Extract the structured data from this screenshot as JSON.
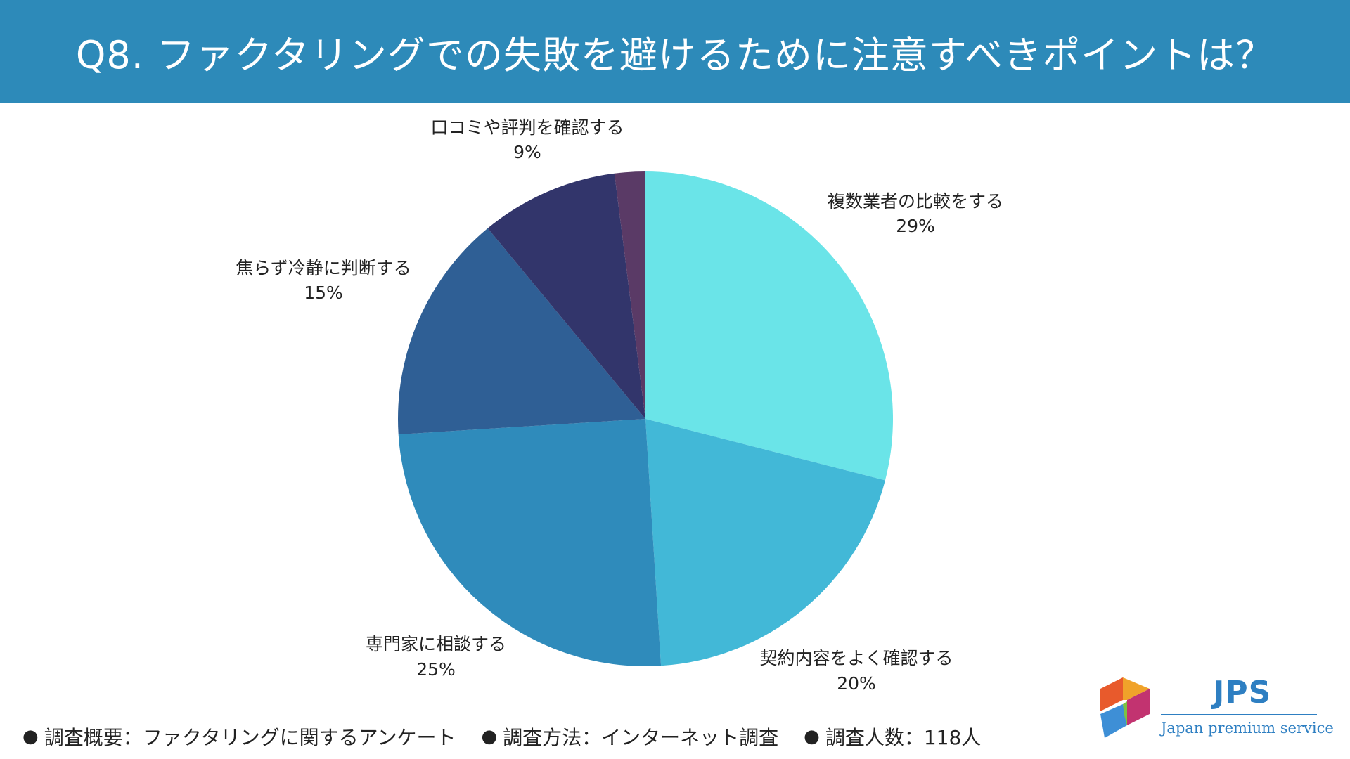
{
  "title": "Q8. ファクタリングでの失敗を避けるために注意すべきポイントは？",
  "chart_data": {
    "type": "pie",
    "title": "",
    "start": "12 o'clock",
    "direction": "clockwise",
    "slices": [
      {
        "label": "複数業者の比較をする",
        "value": 29,
        "display": "29%",
        "color": "#6ae4e8"
      },
      {
        "label": "契約内容をよく確認する",
        "value": 20,
        "display": "20%",
        "color": "#42b8d7"
      },
      {
        "label": "専門家に相談する",
        "value": 25,
        "display": "25%",
        "color": "#2f8bbb"
      },
      {
        "label": "焦らず冷静に判断する",
        "value": 15,
        "display": "15%",
        "color": "#2f5f95"
      },
      {
        "label": "口コミや評判を確認する",
        "value": 9,
        "display": "9%",
        "color": "#32356b"
      },
      {
        "label": "",
        "value": 2,
        "display": "",
        "color": "#5a3a66"
      }
    ]
  },
  "footer": {
    "items": [
      {
        "bullet": "●",
        "text": "調査概要：ファクタリングに関するアンケート"
      },
      {
        "bullet": "●",
        "text": "調査方法：インターネット調査"
      },
      {
        "bullet": "●",
        "text": "調査人数：118人"
      }
    ]
  },
  "logo": {
    "abbr": "JPS",
    "tagline": "Japan premium service",
    "colors": [
      "#e85a2c",
      "#f0a22a",
      "#c23370",
      "#3e8fd6",
      "#7cc242"
    ]
  }
}
